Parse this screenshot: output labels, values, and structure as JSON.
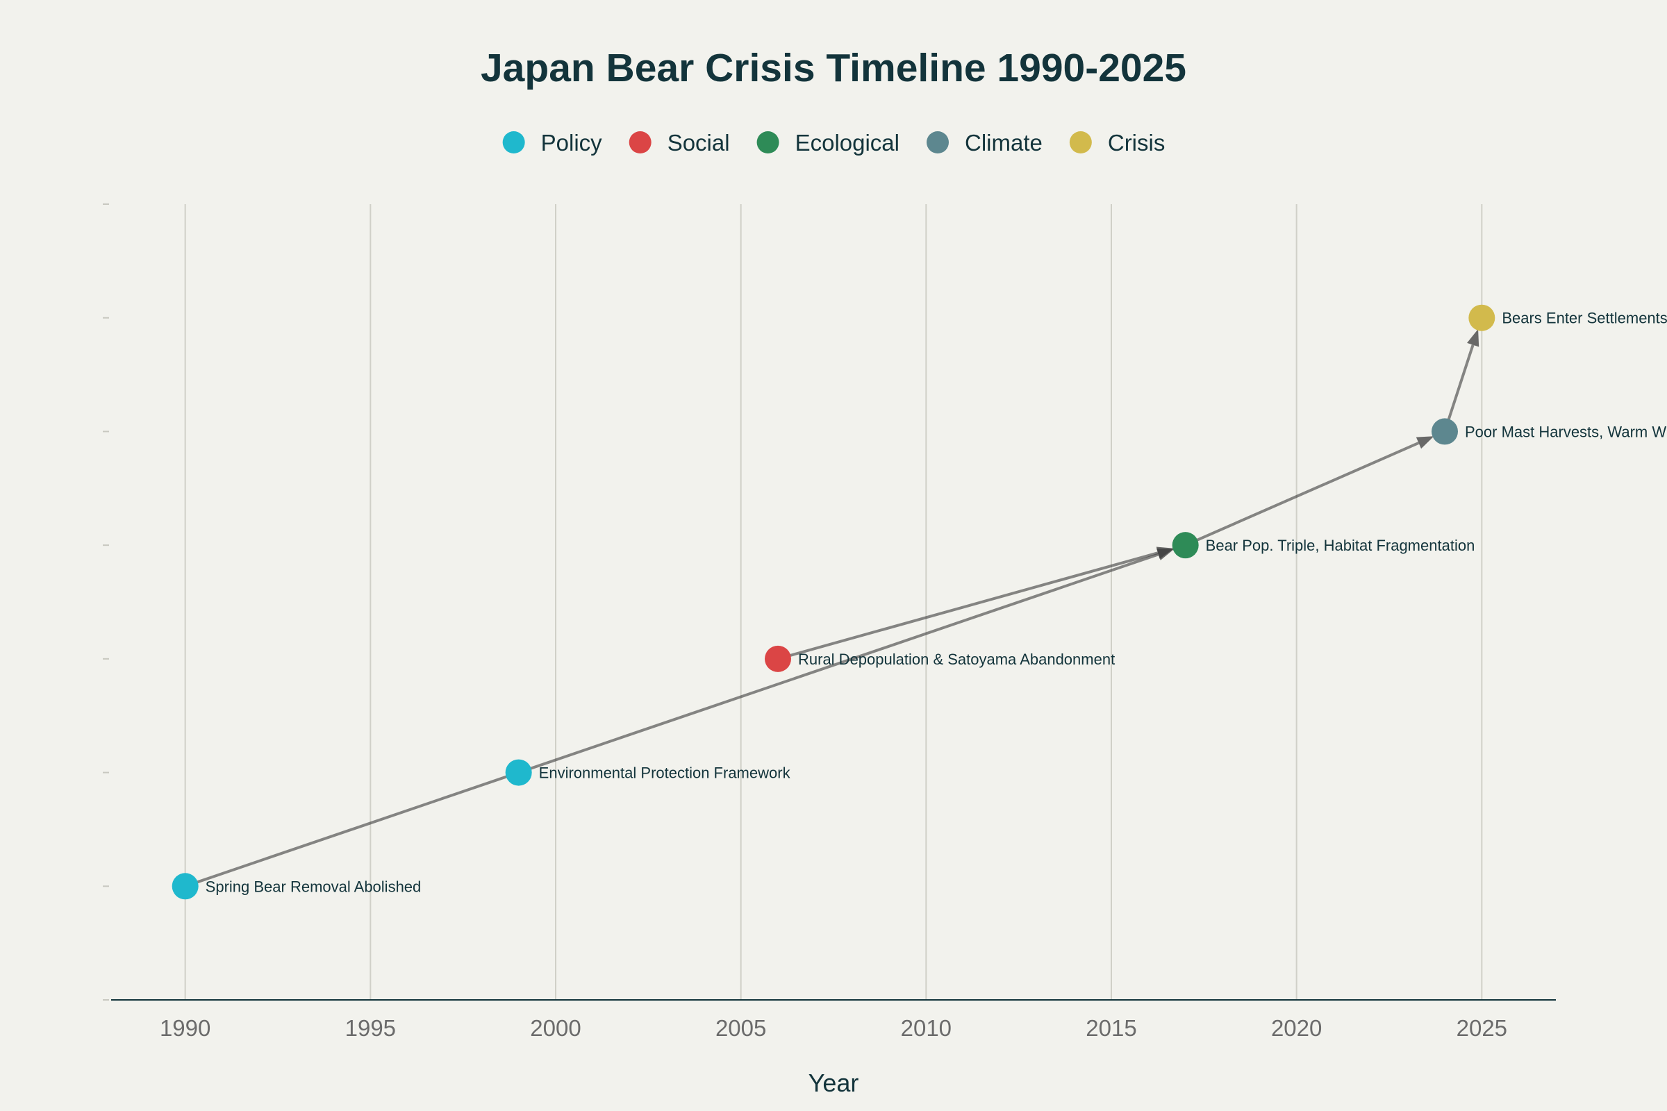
{
  "chart_data": {
    "type": "scatter",
    "title": "Japan Bear Crisis Timeline 1990-2025",
    "xlabel": "Year",
    "ylabel": "",
    "xlim": [
      1988,
      2027
    ],
    "ylim": [
      0,
      7
    ],
    "xticks": [
      1990,
      1995,
      2000,
      2005,
      2010,
      2015,
      2020,
      2025
    ],
    "grid": "vertical",
    "legend_position": "top-center",
    "categories": [
      {
        "name": "Policy",
        "color": "#1fb8cd"
      },
      {
        "name": "Social",
        "color": "#db4545"
      },
      {
        "name": "Ecological",
        "color": "#2e8b57"
      },
      {
        "name": "Climate",
        "color": "#5d878f"
      },
      {
        "name": "Crisis",
        "color": "#d2ba4c"
      }
    ],
    "events": [
      {
        "x": 1990,
        "y": 1,
        "category": "Policy",
        "label": "Spring Bear Removal Abolished"
      },
      {
        "x": 1999,
        "y": 2,
        "category": "Policy",
        "label": "Environmental Protection Framework"
      },
      {
        "x": 2006,
        "y": 3,
        "category": "Social",
        "label": "Rural Depopulation & Satoyama Abandonment"
      },
      {
        "x": 2017,
        "y": 4,
        "category": "Ecological",
        "label": "Bear Pop. Triple, Habitat Fragmentation"
      },
      {
        "x": 2024,
        "y": 5,
        "category": "Climate",
        "label": "Poor Mast Harvests, Warm Winters"
      },
      {
        "x": 2025,
        "y": 6,
        "category": "Crisis",
        "label": "Bears Enter Settlements"
      }
    ],
    "arrows": [
      {
        "from": 0,
        "to": 3
      },
      {
        "from": 2,
        "to": 3
      },
      {
        "from": 3,
        "to": 4
      },
      {
        "from": 4,
        "to": 5
      }
    ]
  }
}
